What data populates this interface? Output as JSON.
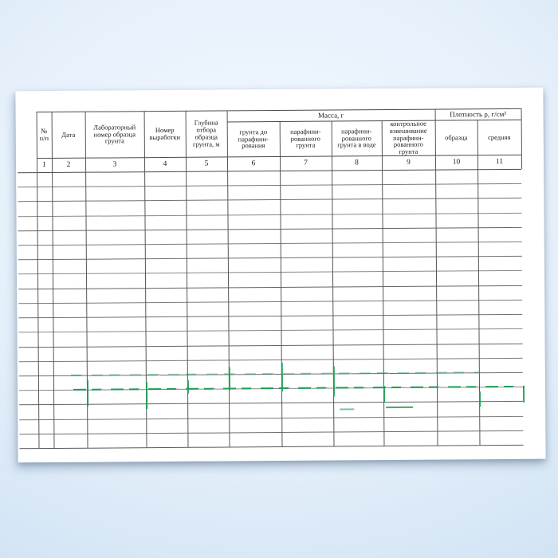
{
  "document": {
    "kind": "scanned-journal-table-page",
    "table": {
      "group_headers": [
        {
          "label": "Масса, г"
        },
        {
          "label": "Плотность ρ, г/см³"
        }
      ],
      "columns": [
        {
          "number": "1",
          "title": "№\nп/п"
        },
        {
          "number": "2",
          "title": "Дата"
        },
        {
          "number": "3",
          "title": "Лабораторный\nномер образца\nгрунта"
        },
        {
          "number": "4",
          "title": "Номер\nвыработки"
        },
        {
          "number": "5",
          "title": "Глубина\nотбора\nобразца\nгрунта, м"
        },
        {
          "number": "6",
          "title": "грунта до\nпарафини-\nрования"
        },
        {
          "number": "7",
          "title": "парафини-\nрованного\nгрунта"
        },
        {
          "number": "8",
          "title": "парафини-\nрованного\nгрунта в воде"
        },
        {
          "number": "9",
          "title": "контрольное\nвзвешивание\nпарафини-\nрованного\nгрунта"
        },
        {
          "number": "10",
          "title": "образца"
        },
        {
          "number": "11",
          "title": "средняя"
        }
      ],
      "empty_row_count": 19,
      "cells_are_blank": true
    },
    "colors": {
      "paper": "#ffffff",
      "background_center": "#f2f8fe",
      "background_edge": "#c6dbee",
      "grid_header_line": "#4a4a4a",
      "grid_row_line": "#6e6e6e",
      "artifact_green": "#1d9e53"
    }
  }
}
